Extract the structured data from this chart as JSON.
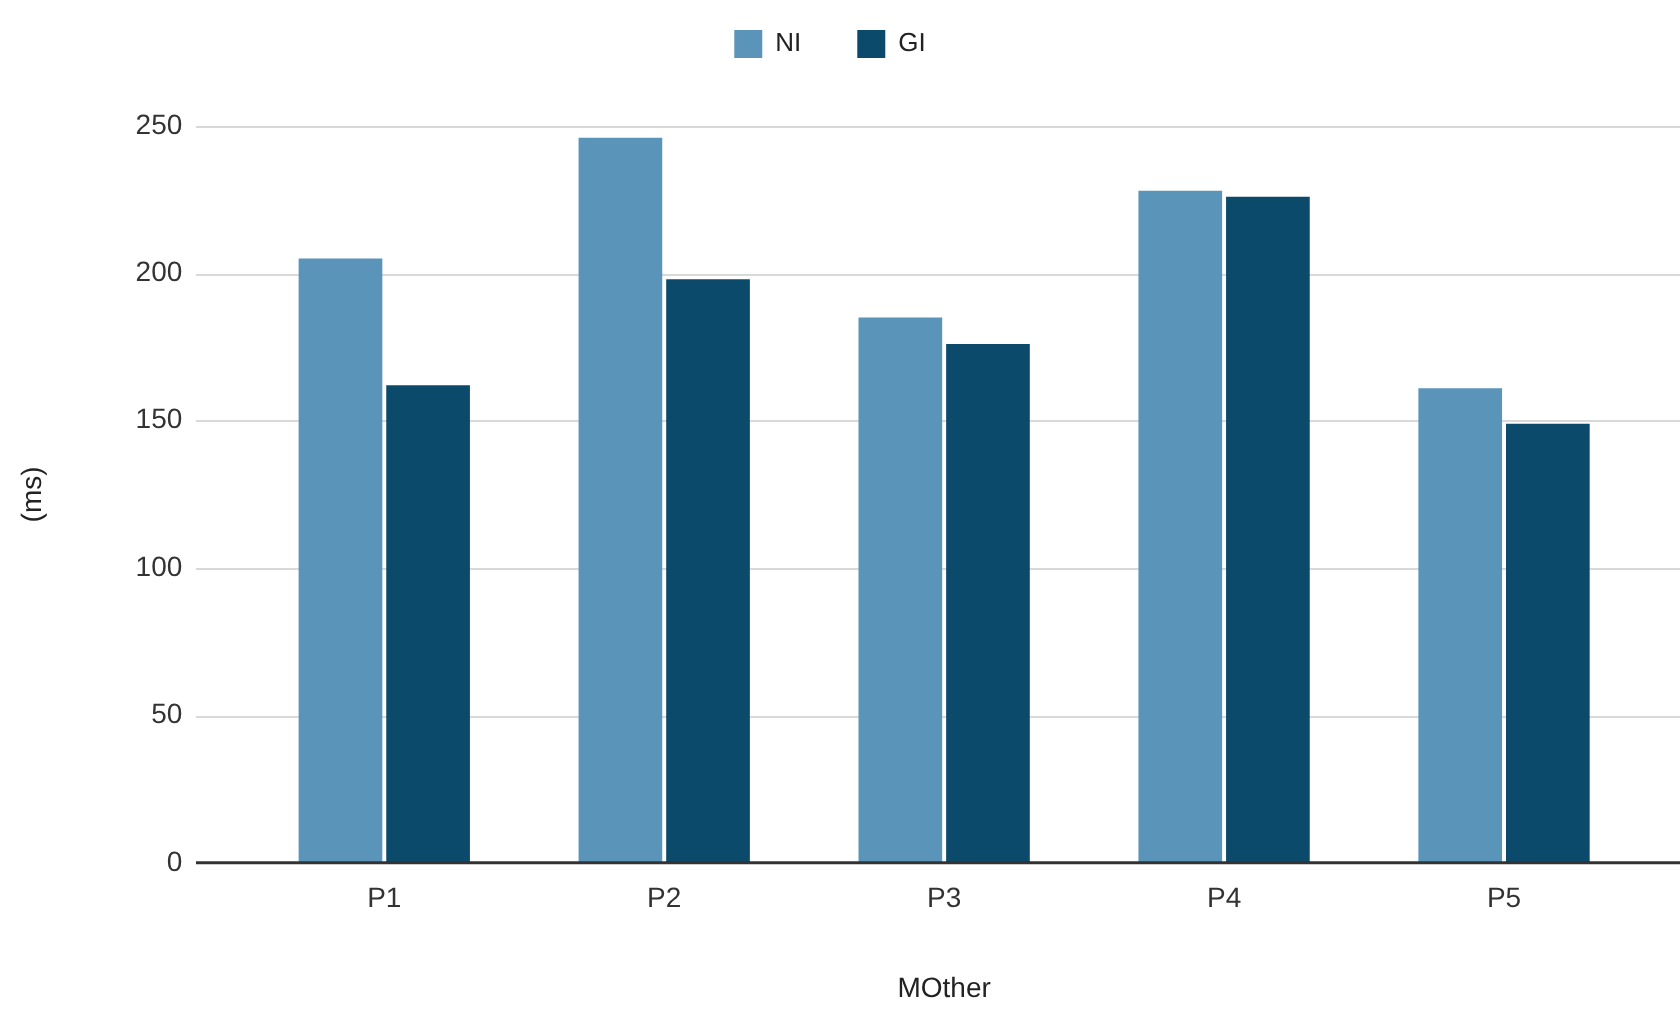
{
  "chart_data": {
    "type": "bar",
    "xlabel": "MOther",
    "ylabel": "(ms)",
    "categories": [
      "P1",
      "P2",
      "P3",
      "P4",
      "P5"
    ],
    "series": [
      {
        "name": "NI",
        "color": "#5a94b8",
        "values": [
          205,
          246,
          185,
          228,
          161
        ]
      },
      {
        "name": "GI",
        "color": "#0b4a6b",
        "values": [
          162,
          198,
          176,
          226,
          149
        ]
      }
    ],
    "ylim": [
      0,
      250
    ],
    "yticks": [
      0,
      50,
      100,
      150,
      200,
      250
    ],
    "grid": "y",
    "legend": "top"
  }
}
